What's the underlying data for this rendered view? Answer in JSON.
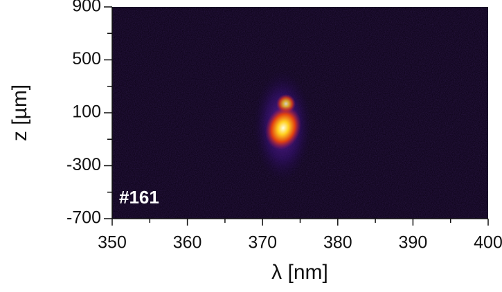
{
  "chart_data": {
    "type": "image",
    "x_label": "λ [nm]",
    "y_label": "z [µm]",
    "annotation": "#161",
    "xlim": [
      350,
      400
    ],
    "xticks": [
      350,
      360,
      370,
      380,
      390,
      400
    ],
    "xminorticks": [
      355,
      365,
      375,
      385,
      395
    ],
    "ylim": [
      -700,
      900
    ],
    "yticks": [
      -700,
      -300,
      100,
      500,
      900
    ],
    "yminorticks": [
      -500,
      -100,
      300,
      700
    ],
    "background": "#07000f"
  }
}
